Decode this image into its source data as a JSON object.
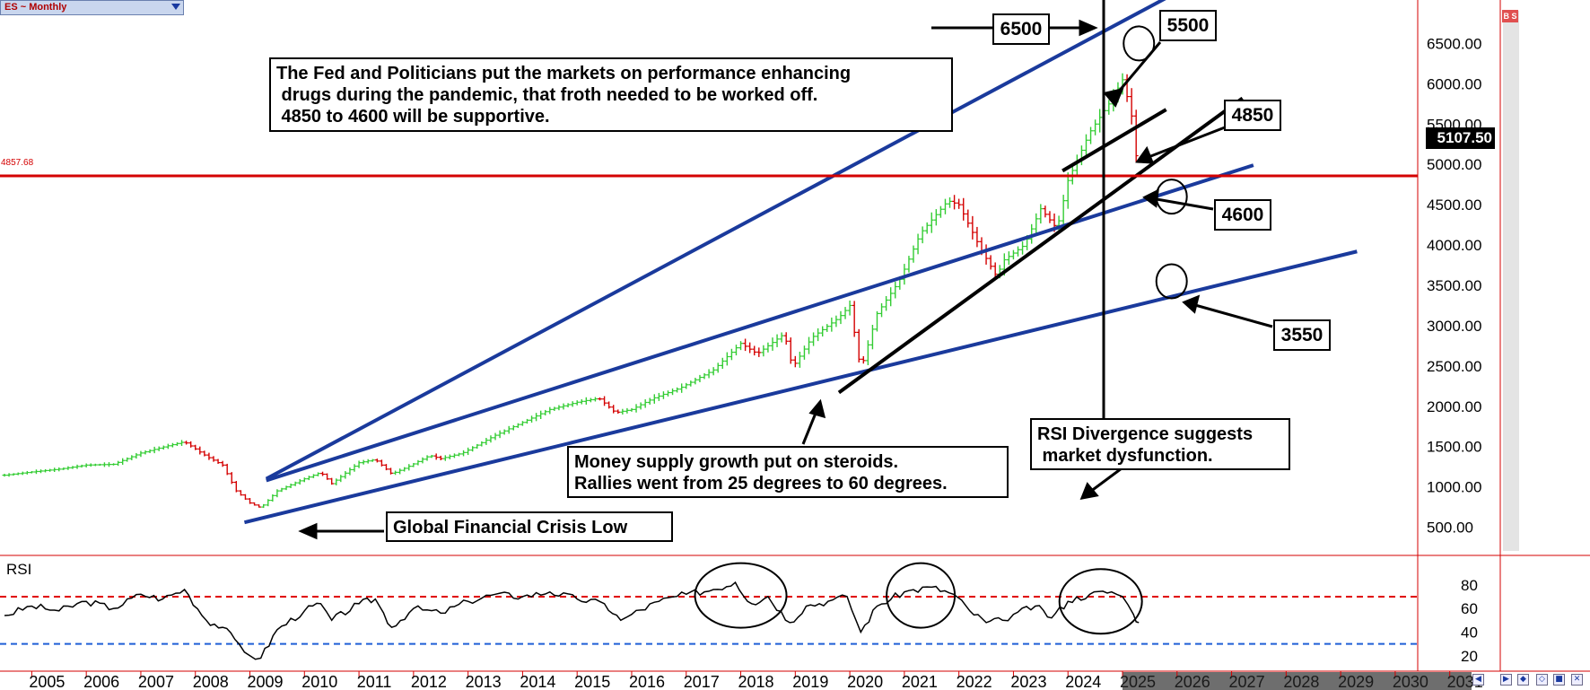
{
  "symbol": {
    "label": "ES ~ Monthly"
  },
  "chart_data": {
    "type": "bar",
    "title": "",
    "price_axis": {
      "range": [
        250,
        6950
      ],
      "ticks": [
        "6500.00",
        "6000.00",
        "5500.00",
        "5000.00",
        "4500.00",
        "4000.00",
        "3500.00",
        "3000.00",
        "2500.00",
        "2000.00",
        "1500.00",
        "1000.00",
        "500.00"
      ]
    },
    "time_axis": {
      "range": [
        2004.5,
        2031.4
      ],
      "labels": [
        "2005",
        "2006",
        "2007",
        "2008",
        "2009",
        "2010",
        "2011",
        "2012",
        "2013",
        "2014",
        "2015",
        "2016",
        "2017",
        "2018",
        "2019",
        "2020",
        "2021",
        "2022",
        "2023",
        "2024",
        "2025",
        "2026",
        "2027",
        "2028",
        "2029",
        "2030",
        "2031"
      ],
      "future_from": 2025.0
    },
    "last_price": {
      "value": 5107.5,
      "label": "5107.50"
    },
    "reference_line": {
      "value": 4857.68,
      "label": "4857.68",
      "color": "#d40000"
    },
    "price_series": [
      [
        2004.5,
        1145
      ],
      [
        2005.0,
        1185
      ],
      [
        2005.5,
        1220
      ],
      [
        2006.0,
        1270
      ],
      [
        2006.5,
        1280
      ],
      [
        2007.0,
        1420
      ],
      [
        2007.5,
        1510
      ],
      [
        2007.8,
        1560
      ],
      [
        2008.2,
        1380
      ],
      [
        2008.5,
        1270
      ],
      [
        2008.75,
        950
      ],
      [
        2009.0,
        800
      ],
      [
        2009.2,
        740
      ],
      [
        2009.5,
        950
      ],
      [
        2010.0,
        1100
      ],
      [
        2010.3,
        1180
      ],
      [
        2010.5,
        1040
      ],
      [
        2011.0,
        1300
      ],
      [
        2011.3,
        1340
      ],
      [
        2011.6,
        1160
      ],
      [
        2011.9,
        1250
      ],
      [
        2012.3,
        1390
      ],
      [
        2012.5,
        1350
      ],
      [
        2012.9,
        1420
      ],
      [
        2013.5,
        1640
      ],
      [
        2014.0,
        1800
      ],
      [
        2014.5,
        1960
      ],
      [
        2015.0,
        2050
      ],
      [
        2015.4,
        2100
      ],
      [
        2015.7,
        1920
      ],
      [
        2016.0,
        1960
      ],
      [
        2016.4,
        2100
      ],
      [
        2016.9,
        2230
      ],
      [
        2017.5,
        2450
      ],
      [
        2018.0,
        2780
      ],
      [
        2018.3,
        2650
      ],
      [
        2018.8,
        2900
      ],
      [
        2018.95,
        2480
      ],
      [
        2019.3,
        2850
      ],
      [
        2019.8,
        3100
      ],
      [
        2020.0,
        3250
      ],
      [
        2020.2,
        2450
      ],
      [
        2020.5,
        3150
      ],
      [
        2020.9,
        3550
      ],
      [
        2021.3,
        4150
      ],
      [
        2021.8,
        4550
      ],
      [
        2022.0,
        4500
      ],
      [
        2022.4,
        3950
      ],
      [
        2022.7,
        3600
      ],
      [
        2022.8,
        3800
      ],
      [
        2023.2,
        4000
      ],
      [
        2023.5,
        4450
      ],
      [
        2023.8,
        4200
      ],
      [
        2024.0,
        4800
      ],
      [
        2024.4,
        5400
      ],
      [
        2024.8,
        5800
      ],
      [
        2025.0,
        6050
      ],
      [
        2025.1,
        5800
      ],
      [
        2025.2,
        5500
      ],
      [
        2025.25,
        5107.5
      ]
    ],
    "trendlines": [
      {
        "color": "#1a3a9c",
        "points": [
          [
            2009.3,
            1100
          ],
          [
            2025.9,
            7100
          ]
        ]
      },
      {
        "color": "#1a3a9c",
        "points": [
          [
            2009.3,
            1080
          ],
          [
            2027.4,
            4990
          ]
        ]
      },
      {
        "color": "#1a3a9c",
        "points": [
          [
            2008.9,
            560
          ],
          [
            2029.3,
            3920
          ]
        ]
      },
      {
        "color": "#000000",
        "points": [
          [
            2019.8,
            2170
          ],
          [
            2027.2,
            5820
          ]
        ]
      },
      {
        "color": "#000000",
        "points": [
          [
            2023.9,
            4920
          ],
          [
            2025.8,
            5680
          ]
        ]
      }
    ],
    "circles": [
      [
        2025.3,
        6500
      ],
      [
        2025.9,
        4600
      ],
      [
        2025.9,
        3550
      ]
    ],
    "rsi": {
      "label": "RSI",
      "range": [
        10,
        95
      ],
      "ticks": [
        "80",
        "60",
        "40",
        "20"
      ],
      "overbought": 70,
      "oversold": 30,
      "series": [
        [
          2004.5,
          54
        ],
        [
          2005.0,
          62
        ],
        [
          2005.5,
          58
        ],
        [
          2006.0,
          66
        ],
        [
          2006.5,
          60
        ],
        [
          2007.0,
          72
        ],
        [
          2007.4,
          68
        ],
        [
          2007.8,
          76
        ],
        [
          2008.2,
          50
        ],
        [
          2008.5,
          44
        ],
        [
          2008.8,
          30
        ],
        [
          2009.0,
          20
        ],
        [
          2009.2,
          18
        ],
        [
          2009.5,
          42
        ],
        [
          2010.0,
          58
        ],
        [
          2010.3,
          64
        ],
        [
          2010.5,
          50
        ],
        [
          2011.0,
          64
        ],
        [
          2011.3,
          68
        ],
        [
          2011.6,
          44
        ],
        [
          2012.0,
          60
        ],
        [
          2012.5,
          56
        ],
        [
          2013.0,
          66
        ],
        [
          2013.5,
          72
        ],
        [
          2014.0,
          70
        ],
        [
          2014.5,
          74
        ],
        [
          2015.0,
          68
        ],
        [
          2015.5,
          64
        ],
        [
          2015.8,
          50
        ],
        [
          2016.0,
          55
        ],
        [
          2016.5,
          66
        ],
        [
          2017.0,
          72
        ],
        [
          2017.5,
          76
        ],
        [
          2017.9,
          82
        ],
        [
          2018.2,
          64
        ],
        [
          2018.5,
          70
        ],
        [
          2018.9,
          48
        ],
        [
          2019.2,
          62
        ],
        [
          2019.6,
          66
        ],
        [
          2019.95,
          70
        ],
        [
          2020.2,
          40
        ],
        [
          2020.5,
          62
        ],
        [
          2021.0,
          74
        ],
        [
          2021.5,
          78
        ],
        [
          2021.9,
          72
        ],
        [
          2022.2,
          58
        ],
        [
          2022.5,
          48
        ],
        [
          2022.8,
          50
        ],
        [
          2023.0,
          55
        ],
        [
          2023.4,
          62
        ],
        [
          2023.7,
          52
        ],
        [
          2024.0,
          66
        ],
        [
          2024.4,
          72
        ],
        [
          2024.8,
          74
        ],
        [
          2025.0,
          70
        ],
        [
          2025.2,
          55
        ],
        [
          2025.3,
          48
        ]
      ],
      "circles": [
        [
          2018.0,
          71
        ],
        [
          2021.3,
          71
        ],
        [
          2024.6,
          66
        ]
      ]
    },
    "annotations": [
      {
        "text": "The Fed and Politicians put the markets on performance enhancing\n drugs during the pandemic, that froth needed to be worked off.\n 4850 to 4600 will be supportive."
      },
      {
        "text": "Money supply growth put on steroids.\nRallies went from 25 degrees to 60 degrees."
      },
      {
        "text": "RSI Divergence suggests\n market dysfunction."
      },
      {
        "text": "Global Financial Crisis Low"
      },
      {
        "text": "6500"
      },
      {
        "text": "5500"
      },
      {
        "text": "4850"
      },
      {
        "text": "4600"
      },
      {
        "text": "3550"
      }
    ]
  },
  "toolbar": {
    "badge": "B S"
  },
  "colors": {
    "up": "#33cc33",
    "down": "#d40000",
    "trend_blue": "#1a3a9c",
    "ref": "#d40000"
  }
}
